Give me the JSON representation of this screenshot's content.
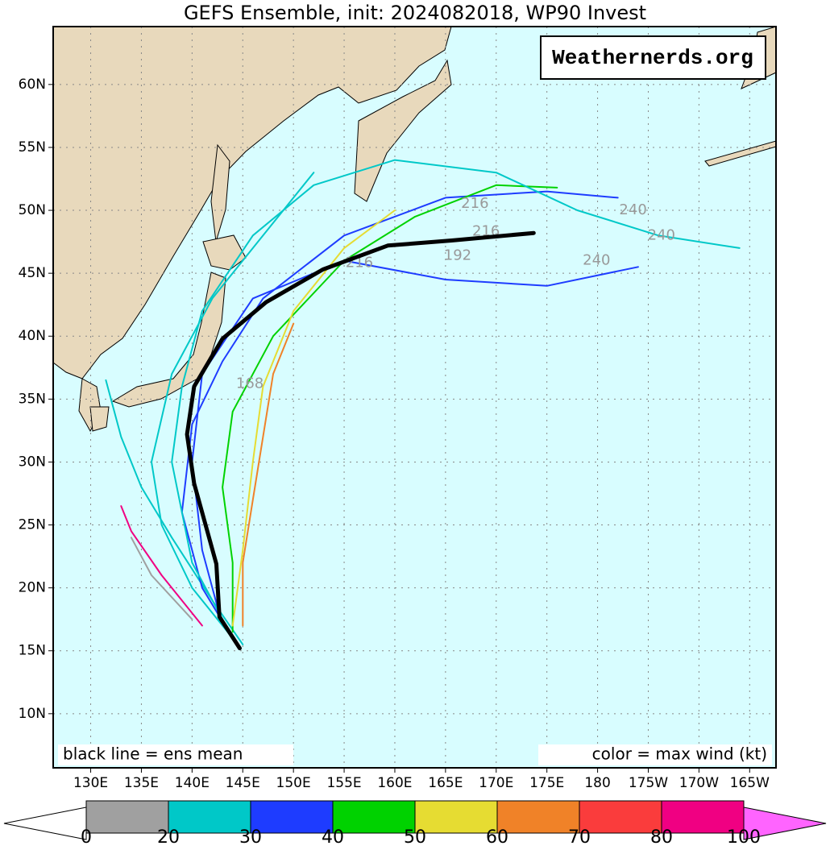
{
  "map": {
    "title": "GEFS Ensemble, init: 2024082018, WP90 Invest",
    "watermark": "Weathernerds.org",
    "note_left": "black line = ens mean",
    "note_right": "color = max wind (kt)",
    "lonlim": [
      126.3,
      197.6
    ],
    "latlim": [
      5.7,
      64.6
    ],
    "lonticks": [
      {
        "value": 130,
        "label": "130E"
      },
      {
        "value": 135,
        "label": "135E"
      },
      {
        "value": 140,
        "label": "140E"
      },
      {
        "value": 145,
        "label": "145E"
      },
      {
        "value": 150,
        "label": "150E"
      },
      {
        "value": 155,
        "label": "155E"
      },
      {
        "value": 160,
        "label": "160E"
      },
      {
        "value": 165,
        "label": "165E"
      },
      {
        "value": 170,
        "label": "170E"
      },
      {
        "value": 175,
        "label": "175E"
      },
      {
        "value": 180,
        "label": "180"
      },
      {
        "value": 185,
        "label": "175W"
      },
      {
        "value": 190,
        "label": "170W"
      },
      {
        "value": 195,
        "label": "165W"
      }
    ],
    "latticks": [
      {
        "value": 10,
        "label": "10N"
      },
      {
        "value": 15,
        "label": "15N"
      },
      {
        "value": 20,
        "label": "20N"
      },
      {
        "value": 25,
        "label": "25N"
      },
      {
        "value": 30,
        "label": "30N"
      },
      {
        "value": 35,
        "label": "35N"
      },
      {
        "value": 40,
        "label": "40N"
      },
      {
        "value": 45,
        "label": "45N"
      },
      {
        "value": 50,
        "label": "50N"
      },
      {
        "value": 55,
        "label": "55N"
      },
      {
        "value": 60,
        "label": "60N"
      }
    ],
    "mean_track": {
      "color": "#000000",
      "lon": [
        144.7,
        142.7,
        142.4,
        140.2,
        139.5,
        140.2,
        143.0,
        147.3,
        152.9,
        159.3,
        165.6,
        173.7
      ],
      "lat": [
        15.2,
        17.7,
        21.9,
        28.3,
        32.2,
        36.0,
        39.8,
        42.7,
        45.3,
        47.2,
        47.6,
        48.2
      ]
    },
    "members": [
      {
        "color": "#00c8c8",
        "lon": [
          145,
          142,
          138,
          135,
          133,
          131.5
        ],
        "lat": [
          15.5,
          19,
          24,
          28,
          32,
          36.5
        ]
      },
      {
        "color": "#1e3cff",
        "lon": [
          144,
          141,
          139,
          140,
          143,
          147,
          155,
          165,
          175,
          182
        ],
        "lat": [
          16,
          20,
          26,
          33,
          38,
          43,
          48,
          51,
          51.5,
          51
        ]
      },
      {
        "color": "#00d200",
        "lon": [
          144,
          144,
          143,
          144,
          148,
          155,
          162,
          170,
          176
        ],
        "lat": [
          16.5,
          22,
          28,
          34,
          40,
          46,
          49.5,
          52,
          51.8
        ]
      },
      {
        "color": "#f08228",
        "lon": [
          145,
          145,
          146,
          147,
          148,
          150
        ],
        "lat": [
          17,
          22,
          27,
          32,
          37,
          41
        ]
      },
      {
        "color": "#00c8c8",
        "lon": [
          144,
          140,
          138,
          139,
          141,
          146,
          152,
          160,
          170,
          178,
          186,
          194
        ],
        "lat": [
          16,
          22,
          30,
          36,
          42,
          48,
          52,
          54,
          53,
          50,
          48,
          47
        ]
      },
      {
        "color": "#1e3cff",
        "lon": [
          143,
          141,
          140,
          141,
          146,
          155,
          165,
          175,
          184
        ],
        "lat": [
          17,
          23,
          30,
          37,
          43,
          46,
          44.5,
          44,
          45.5
        ]
      },
      {
        "color": "#f00082",
        "lon": [
          141,
          137,
          134,
          133
        ],
        "lat": [
          17,
          21,
          24.5,
          26.5
        ]
      },
      {
        "color": "#e6dc32",
        "lon": [
          144,
          145,
          146,
          147,
          150,
          155,
          160
        ],
        "lat": [
          17,
          23,
          30,
          36,
          42,
          47,
          50
        ]
      },
      {
        "color": "#a0a0a0",
        "lon": [
          140,
          136,
          134
        ],
        "lat": [
          17.5,
          21,
          24
        ]
      },
      {
        "color": "#00c8c8",
        "lon": [
          144,
          140,
          137,
          136,
          138,
          142,
          147,
          152
        ],
        "lat": [
          16,
          20,
          25,
          30,
          37,
          43,
          48,
          53
        ]
      }
    ],
    "hour_labels": [
      {
        "label": "216",
        "lon": 167.9,
        "lat": 50.5
      },
      {
        "label": "240",
        "lon": 183.5,
        "lat": 50.0
      },
      {
        "label": "240",
        "lon": 186.3,
        "lat": 48.0
      },
      {
        "label": "240",
        "lon": 179.9,
        "lat": 46.0
      },
      {
        "label": "216",
        "lon": 169.0,
        "lat": 48.3
      },
      {
        "label": "192",
        "lon": 166.2,
        "lat": 46.4
      },
      {
        "label": "216",
        "lon": 156.5,
        "lat": 45.8
      },
      {
        "label": "168",
        "lon": 145.7,
        "lat": 36.2
      }
    ],
    "colorbar": {
      "bounds": [
        0,
        20,
        30,
        40,
        50,
        60,
        70,
        80,
        100
      ],
      "colors": [
        "#a0a0a0",
        "#00c8c8",
        "#1e3cff",
        "#00d200",
        "#e6dc32",
        "#f08228",
        "#fa3c3c",
        "#f00082"
      ],
      "under_color": "#ffffff",
      "over_color": "#ff64ff"
    }
  }
}
